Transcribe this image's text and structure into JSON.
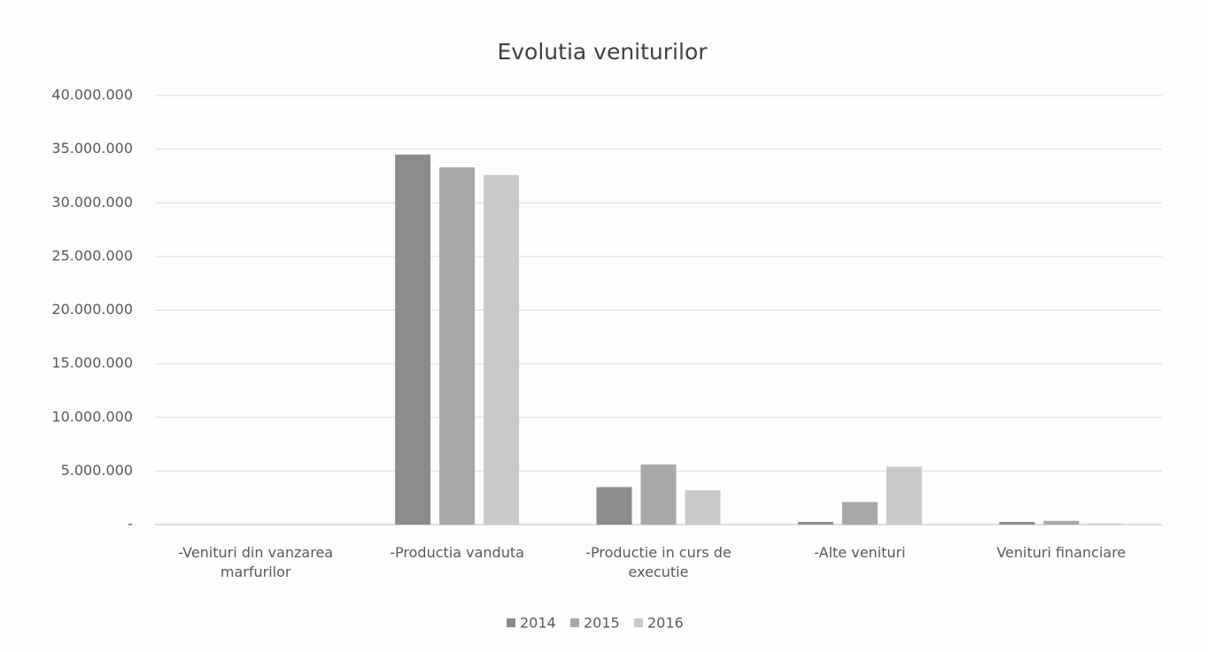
{
  "chart_data": {
    "type": "bar",
    "title": "Evolutia veniturilor",
    "categories": [
      "-Venituri din vanzarea marfurilor",
      "-Productia vanduta",
      "-Productie in curs de executie",
      "-Alte venituri",
      "Venituri financiare"
    ],
    "series": [
      {
        "name": "2014",
        "color": "#8c8c8c",
        "values": [
          0,
          34500000,
          3500000,
          250000,
          250000
        ]
      },
      {
        "name": "2015",
        "color": "#a8a8a8",
        "values": [
          0,
          33300000,
          5600000,
          2100000,
          350000
        ]
      },
      {
        "name": "2016",
        "color": "#c9c9c9",
        "values": [
          0,
          32600000,
          3200000,
          5400000,
          100000
        ]
      }
    ],
    "ylim": [
      0,
      40000000
    ],
    "yticks": [
      {
        "value": 0,
        "label": "-"
      },
      {
        "value": 5000000,
        "label": "5.000.000"
      },
      {
        "value": 10000000,
        "label": "10.000.000"
      },
      {
        "value": 15000000,
        "label": "15.000.000"
      },
      {
        "value": 20000000,
        "label": "20.000.000"
      },
      {
        "value": 25000000,
        "label": "25.000.000"
      },
      {
        "value": 30000000,
        "label": "30.000.000"
      },
      {
        "value": 35000000,
        "label": "35.000.000"
      },
      {
        "value": 40000000,
        "label": "40.000.000"
      }
    ],
    "grid": true,
    "legend": "bottom"
  }
}
